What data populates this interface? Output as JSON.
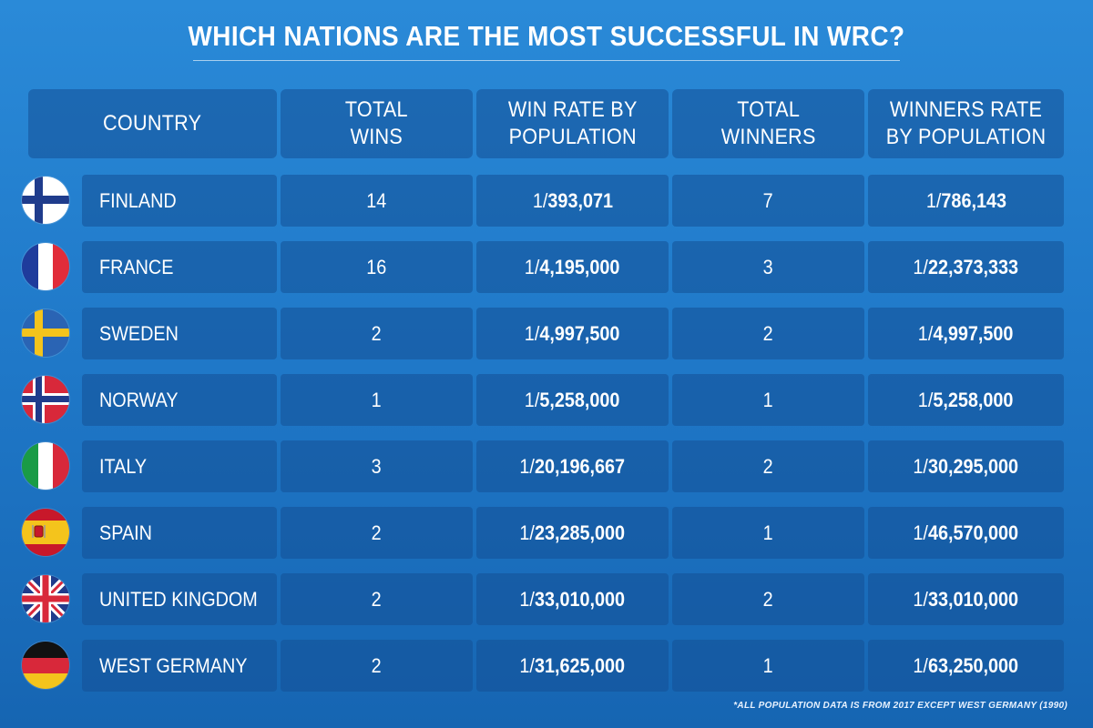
{
  "title": "WHICH NATIONS ARE THE MOST SUCCESSFUL IN WRC?",
  "headers": {
    "country": "COUNTRY",
    "total_wins": "TOTAL\nWINS",
    "win_rate": "WIN RATE BY\nPOPULATION",
    "total_winners": "TOTAL\nWINNERS",
    "winners_rate": "WINNERS RATE\nBY POPULATION"
  },
  "footnote": "*ALL POPULATION DATA IS FROM 2017 EXCEPT WEST GERMANY (1990)",
  "rate_prefix": "1/",
  "chart_data": {
    "type": "table",
    "title": "WHICH NATIONS ARE THE MOST SUCCESSFUL IN WRC?",
    "columns": [
      "COUNTRY",
      "TOTAL WINS",
      "WIN RATE BY POPULATION",
      "TOTAL WINNERS",
      "WINNERS RATE BY POPULATION"
    ],
    "rows": [
      {
        "country": "FINLAND",
        "flag": "finland-flag-icon",
        "total_wins": "14",
        "win_rate": "393,071",
        "total_winners": "7",
        "winners_rate": "786,143"
      },
      {
        "country": "FRANCE",
        "flag": "france-flag-icon",
        "total_wins": "16",
        "win_rate": "4,195,000",
        "total_winners": "3",
        "winners_rate": "22,373,333"
      },
      {
        "country": "SWEDEN",
        "flag": "sweden-flag-icon",
        "total_wins": "2",
        "win_rate": "4,997,500",
        "total_winners": "2",
        "winners_rate": "4,997,500"
      },
      {
        "country": "NORWAY",
        "flag": "norway-flag-icon",
        "total_wins": "1",
        "win_rate": "5,258,000",
        "total_winners": "1",
        "winners_rate": "5,258,000"
      },
      {
        "country": "ITALY",
        "flag": "italy-flag-icon",
        "total_wins": "3",
        "win_rate": "20,196,667",
        "total_winners": "2",
        "winners_rate": "30,295,000"
      },
      {
        "country": "SPAIN",
        "flag": "spain-flag-icon",
        "total_wins": "2",
        "win_rate": "23,285,000",
        "total_winners": "1",
        "winners_rate": "46,570,000"
      },
      {
        "country": "UNITED KINGDOM",
        "flag": "uk-flag-icon",
        "total_wins": "2",
        "win_rate": "33,010,000",
        "total_winners": "2",
        "winners_rate": "33,010,000"
      },
      {
        "country": "WEST GERMANY",
        "flag": "germany-flag-icon",
        "total_wins": "2",
        "win_rate": "31,625,000",
        "total_winners": "1",
        "winners_rate": "63,250,000"
      }
    ]
  },
  "colors": {
    "finland_blue": "#1f3c8c",
    "france_blue": "#1f3c9c",
    "france_red": "#e12c3a",
    "sweden_blue": "#2a64b4",
    "sweden_yellow": "#f4c41c",
    "norway_red": "#d8283a",
    "norway_blue": "#1f3c8c",
    "italy_green": "#1a9b46",
    "italy_red": "#d8283a",
    "spain_red": "#c8182a",
    "spain_yellow": "#f4c41c",
    "uk_blue": "#1f3c8c",
    "uk_red": "#d8283a",
    "germany_black": "#111111",
    "germany_red": "#d8283a",
    "germany_gold": "#f4c41c"
  }
}
